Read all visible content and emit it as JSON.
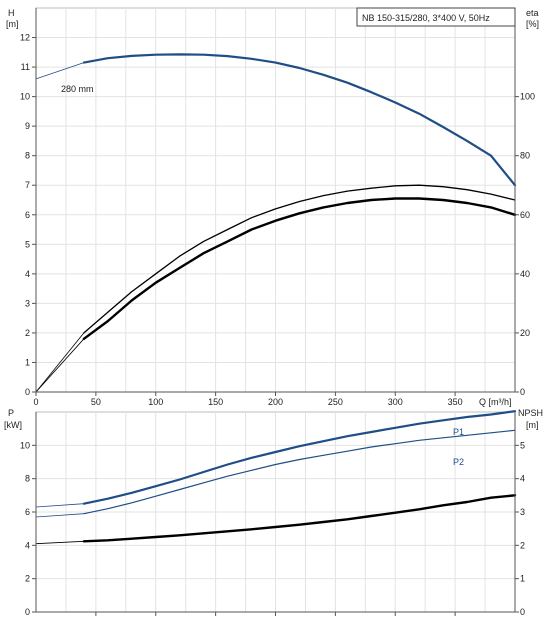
{
  "chart_data": [
    {
      "type": "line",
      "title": "NB 150-315/280, 3*400 V, 50Hz",
      "left_axis": {
        "label": "H",
        "unit": "[m]",
        "ylim": [
          0,
          13
        ],
        "ticks": [
          0,
          1,
          2,
          3,
          4,
          5,
          6,
          7,
          8,
          9,
          10,
          11,
          12
        ]
      },
      "right_axis": {
        "label": "eta",
        "unit": "[%]",
        "ylim": [
          0,
          130
        ],
        "ticks": [
          0,
          20,
          40,
          60,
          80,
          100
        ]
      },
      "x_axis": {
        "label": "Q [m³/h]",
        "xlim": [
          0,
          400
        ],
        "ticks": [
          0,
          50,
          100,
          150,
          200,
          250,
          300,
          350
        ]
      },
      "grid": true,
      "annotations": [
        "280 mm"
      ],
      "series": [
        {
          "role": "head",
          "axis": "left",
          "color": "#1f4e87",
          "width": 2.2,
          "x": [
            0,
            40,
            60,
            80,
            100,
            120,
            140,
            160,
            180,
            200,
            220,
            240,
            260,
            280,
            300,
            320,
            340,
            360,
            380,
            400
          ],
          "y": [
            10.6,
            11.15,
            11.3,
            11.38,
            11.42,
            11.43,
            11.42,
            11.37,
            11.28,
            11.15,
            10.97,
            10.74,
            10.47,
            10.15,
            9.8,
            9.42,
            8.97,
            8.5,
            8.0,
            7.0
          ],
          "thin_until": 40
        },
        {
          "role": "eta-upper",
          "axis": "right",
          "color": "#000000",
          "width": 1.3,
          "x": [
            0,
            40,
            60,
            80,
            100,
            120,
            140,
            160,
            180,
            200,
            220,
            240,
            260,
            280,
            300,
            320,
            340,
            360,
            380,
            400
          ],
          "y": [
            0,
            20,
            27,
            34,
            40,
            46,
            51,
            55,
            59,
            62,
            64.5,
            66.5,
            68,
            69,
            69.8,
            70,
            69.5,
            68.5,
            67,
            65
          ],
          "thin_until": 40
        },
        {
          "role": "eta-lower",
          "axis": "right",
          "color": "#000000",
          "width": 2.4,
          "x": [
            0,
            40,
            60,
            80,
            100,
            120,
            140,
            160,
            180,
            200,
            220,
            240,
            260,
            280,
            300,
            320,
            340,
            360,
            380,
            400
          ],
          "y": [
            0,
            18,
            24,
            31,
            37,
            42,
            47,
            51,
            55,
            58,
            60.5,
            62.5,
            64,
            65,
            65.5,
            65.5,
            65,
            64,
            62.5,
            60
          ],
          "thin_until": 40
        }
      ]
    },
    {
      "type": "line",
      "left_axis": {
        "label": "P",
        "unit": "[kW]",
        "ylim": [
          0,
          12
        ],
        "ticks": [
          0,
          2,
          4,
          6,
          8,
          10
        ]
      },
      "right_axis": {
        "label": "NPSH",
        "unit": "[m]",
        "ylim": [
          0,
          6
        ],
        "ticks": [
          0,
          1,
          2,
          3,
          4,
          5
        ]
      },
      "x_axis": {
        "xlim": [
          0,
          400
        ]
      },
      "grid": true,
      "series": [
        {
          "name": "P1",
          "axis": "left",
          "color": "#1f4e87",
          "width": 2.2,
          "x": [
            0,
            40,
            60,
            80,
            100,
            120,
            140,
            160,
            180,
            200,
            220,
            240,
            260,
            280,
            300,
            320,
            340,
            360,
            380,
            400
          ],
          "y": [
            6.3,
            6.5,
            6.8,
            7.15,
            7.55,
            7.95,
            8.4,
            8.85,
            9.25,
            9.6,
            9.95,
            10.25,
            10.55,
            10.8,
            11.05,
            11.3,
            11.5,
            11.7,
            11.85,
            12.05
          ],
          "thin_until": 40
        },
        {
          "name": "P2",
          "axis": "left",
          "color": "#1f4e87",
          "width": 1.2,
          "x": [
            0,
            40,
            60,
            80,
            100,
            120,
            140,
            160,
            180,
            200,
            220,
            240,
            260,
            280,
            300,
            320,
            340,
            360,
            380,
            400
          ],
          "y": [
            5.7,
            5.9,
            6.2,
            6.55,
            6.95,
            7.35,
            7.75,
            8.15,
            8.5,
            8.85,
            9.15,
            9.4,
            9.65,
            9.9,
            10.1,
            10.3,
            10.45,
            10.6,
            10.75,
            10.9
          ],
          "thin_until": 40
        },
        {
          "role": "npsh",
          "axis": "right",
          "color": "#000000",
          "width": 2.4,
          "x": [
            0,
            40,
            60,
            80,
            100,
            120,
            140,
            160,
            180,
            200,
            220,
            240,
            260,
            280,
            300,
            320,
            340,
            360,
            380,
            400
          ],
          "y": [
            2.05,
            2.12,
            2.15,
            2.2,
            2.25,
            2.3,
            2.36,
            2.42,
            2.48,
            2.55,
            2.62,
            2.7,
            2.78,
            2.88,
            2.98,
            3.08,
            3.2,
            3.3,
            3.43,
            3.5
          ],
          "thin_until": 40
        }
      ]
    }
  ]
}
